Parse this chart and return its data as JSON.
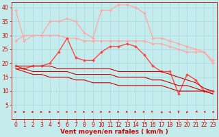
{
  "title": "",
  "xlabel": "Vent moyen/en rafales ( km/h )",
  "background_color": "#c5ecec",
  "grid_color": "#a8d8d8",
  "x": [
    0,
    1,
    2,
    3,
    4,
    5,
    6,
    7,
    8,
    9,
    10,
    11,
    12,
    13,
    14,
    15,
    16,
    17,
    18,
    19,
    20,
    21,
    22,
    23
  ],
  "ylim": [
    0,
    42
  ],
  "xlim": [
    -0.5,
    23.5
  ],
  "yticks": [
    5,
    10,
    15,
    20,
    25,
    30,
    35,
    40
  ],
  "xticks": [
    0,
    1,
    2,
    3,
    4,
    5,
    6,
    7,
    8,
    9,
    10,
    11,
    12,
    13,
    14,
    15,
    16,
    17,
    18,
    19,
    20,
    21,
    22,
    23
  ],
  "lines": [
    {
      "color": "#ffaaaa",
      "lw": 1.0,
      "marker": "D",
      "markersize": 2.0,
      "y": [
        39,
        28,
        30,
        30,
        35,
        35,
        36,
        35,
        31,
        29,
        39,
        39,
        41,
        41,
        40,
        38,
        29,
        29,
        28,
        27,
        26,
        25,
        24,
        21
      ]
    },
    {
      "color": "#ffaaaa",
      "lw": 1.0,
      "marker": "D",
      "markersize": 2.0,
      "y": [
        28,
        30,
        30,
        30,
        30,
        30,
        29,
        29,
        28,
        28,
        28,
        28,
        28,
        28,
        28,
        28,
        27,
        27,
        26,
        25,
        24,
        24,
        24,
        20
      ]
    },
    {
      "color": "#ff4444",
      "lw": 1.0,
      "marker": "D",
      "markersize": 2.0,
      "y": [
        19,
        18,
        19,
        19,
        20,
        24,
        29,
        22,
        21,
        21,
        24,
        26,
        26,
        27,
        26,
        23,
        19,
        17,
        17,
        9,
        16,
        14,
        10,
        10
      ]
    },
    {
      "color": "#cc0000",
      "lw": 0.8,
      "marker": null,
      "markersize": 0,
      "y": [
        19,
        19,
        19,
        19,
        19,
        18,
        18,
        18,
        18,
        18,
        18,
        18,
        17,
        17,
        17,
        17,
        17,
        17,
        16,
        15,
        14,
        13,
        11,
        10
      ]
    },
    {
      "color": "#cc0000",
      "lw": 0.8,
      "marker": null,
      "markersize": 0,
      "y": [
        18,
        18,
        17,
        17,
        17,
        17,
        17,
        16,
        16,
        16,
        16,
        16,
        15,
        15,
        15,
        15,
        14,
        14,
        13,
        12,
        12,
        11,
        10,
        9
      ]
    },
    {
      "color": "#cc0000",
      "lw": 0.8,
      "marker": null,
      "markersize": 0,
      "y": [
        18,
        17,
        16,
        16,
        15,
        15,
        15,
        14,
        14,
        13,
        13,
        13,
        12,
        12,
        12,
        12,
        12,
        12,
        11,
        10,
        10,
        10,
        10,
        9
      ]
    }
  ],
  "tick_color": "#cc0000",
  "tick_fontsize": 5.5,
  "xlabel_fontsize": 6.5,
  "xlabel_color": "#cc0000",
  "xlabel_fontweight": "bold",
  "arrow_color": "#cc0000",
  "arrow_angles": [
    0,
    0,
    0,
    0,
    10,
    20,
    20,
    25,
    25,
    25,
    25,
    25,
    25,
    25,
    25,
    30,
    45,
    60,
    75,
    90,
    110,
    130,
    150,
    160
  ]
}
